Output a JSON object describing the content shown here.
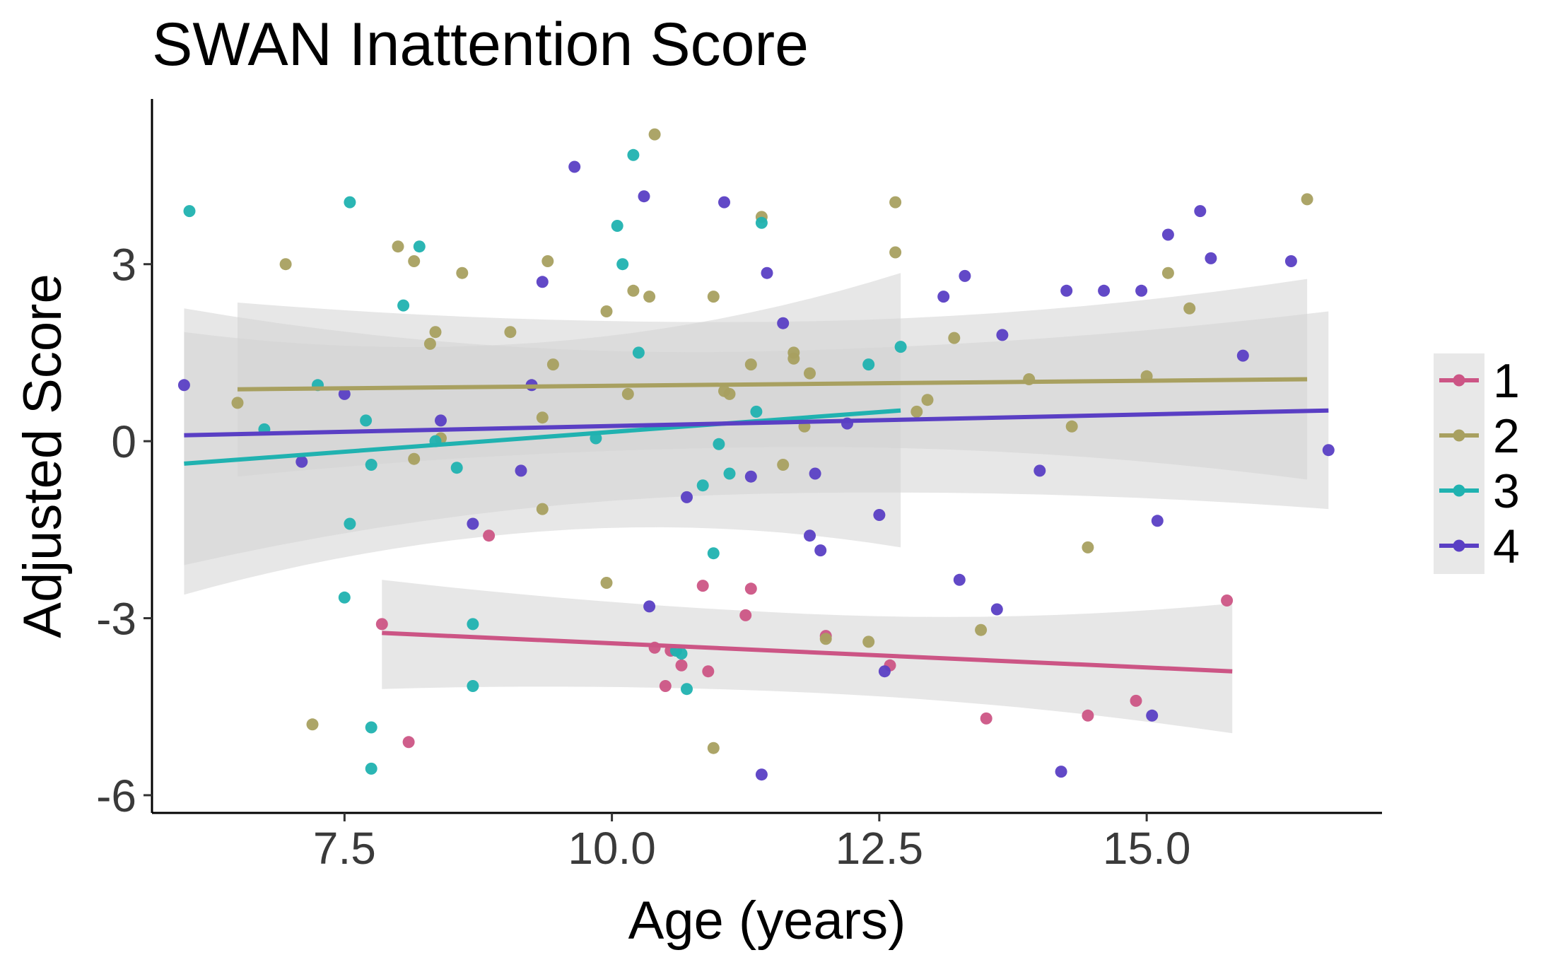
{
  "chart_data": {
    "type": "scatter",
    "title": "SWAN Inattention Score",
    "xlabel": "Age (years)",
    "ylabel": "Adjusted Score",
    "xlim": [
      5.7,
      17.2
    ],
    "ylim": [
      -6.3,
      5.8
    ],
    "x_ticks": [
      7.5,
      10.0,
      12.5,
      15.0
    ],
    "x_tick_labels": [
      "7.5",
      "10.0",
      "12.5",
      "15.0"
    ],
    "y_ticks": [
      3,
      0,
      -3,
      -6
    ],
    "y_tick_labels": [
      "3",
      "0",
      "-3",
      "-6"
    ],
    "grid": false,
    "legend_position": "right",
    "confidence_band_color": "#d3d3d3",
    "series": [
      {
        "name": "1",
        "color": "#cc5585",
        "fit": {
          "x": [
            7.85,
            15.8
          ],
          "y": [
            -3.25,
            -3.9
          ]
        },
        "ci": {
          "upper": [
            -2.35,
            -2.75
          ],
          "lower": [
            -4.2,
            -4.95
          ]
        },
        "points": [
          [
            7.85,
            -3.1
          ],
          [
            8.1,
            -5.1
          ],
          [
            8.85,
            -1.6
          ],
          [
            10.4,
            -3.5
          ],
          [
            10.5,
            -4.15
          ],
          [
            10.55,
            -3.55
          ],
          [
            10.65,
            -3.8
          ],
          [
            10.85,
            -2.45
          ],
          [
            10.9,
            -3.9
          ],
          [
            11.25,
            -2.95
          ],
          [
            11.3,
            -2.5
          ],
          [
            12.0,
            -3.3
          ],
          [
            12.6,
            -3.8
          ],
          [
            13.5,
            -4.7
          ],
          [
            14.45,
            -4.65
          ],
          [
            14.9,
            -4.4
          ],
          [
            15.75,
            -2.7
          ]
        ]
      },
      {
        "name": "2",
        "color": "#a8a060",
        "fit": {
          "x": [
            6.5,
            16.5
          ],
          "y": [
            0.88,
            1.05
          ]
        },
        "ci": {
          "upper": [
            2.35,
            2.75
          ],
          "lower": [
            -0.6,
            -0.65
          ]
        },
        "points": [
          [
            6.5,
            0.65
          ],
          [
            6.95,
            3.0
          ],
          [
            7.2,
            -4.8
          ],
          [
            8.0,
            3.3
          ],
          [
            8.15,
            3.05
          ],
          [
            8.15,
            -0.3
          ],
          [
            8.3,
            1.65
          ],
          [
            8.35,
            1.85
          ],
          [
            8.4,
            0.05
          ],
          [
            8.6,
            2.85
          ],
          [
            9.05,
            1.85
          ],
          [
            9.35,
            -1.15
          ],
          [
            9.35,
            0.4
          ],
          [
            9.4,
            3.05
          ],
          [
            9.45,
            1.3
          ],
          [
            9.95,
            2.2
          ],
          [
            9.95,
            -2.4
          ],
          [
            10.15,
            0.8
          ],
          [
            10.2,
            2.55
          ],
          [
            10.35,
            2.45
          ],
          [
            10.4,
            5.2
          ],
          [
            10.95,
            2.45
          ],
          [
            10.95,
            -5.2
          ],
          [
            11.05,
            0.85
          ],
          [
            11.1,
            0.8
          ],
          [
            11.3,
            1.3
          ],
          [
            11.4,
            3.8
          ],
          [
            11.6,
            -0.4
          ],
          [
            11.7,
            1.5
          ],
          [
            11.7,
            1.4
          ],
          [
            11.8,
            0.25
          ],
          [
            11.85,
            1.15
          ],
          [
            12.0,
            -3.35
          ],
          [
            12.4,
            -3.4
          ],
          [
            12.65,
            3.2
          ],
          [
            12.65,
            4.05
          ],
          [
            12.85,
            0.5
          ],
          [
            12.95,
            0.7
          ],
          [
            13.2,
            1.75
          ],
          [
            13.45,
            -3.2
          ],
          [
            13.9,
            1.05
          ],
          [
            14.3,
            0.25
          ],
          [
            14.45,
            -1.8
          ],
          [
            15.0,
            1.1
          ],
          [
            15.2,
            2.85
          ],
          [
            15.4,
            2.25
          ],
          [
            16.5,
            4.1
          ]
        ]
      },
      {
        "name": "3",
        "color": "#20b2b0",
        "fit": {
          "x": [
            6.0,
            12.7
          ],
          "y": [
            -0.38,
            0.52
          ]
        },
        "ci": {
          "upper": [
            1.85,
            2.85
          ],
          "lower": [
            -2.6,
            -1.8
          ]
        },
        "points": [
          [
            6.05,
            3.9
          ],
          [
            6.75,
            0.2
          ],
          [
            7.25,
            0.95
          ],
          [
            7.5,
            -2.65
          ],
          [
            7.55,
            4.05
          ],
          [
            7.55,
            -1.4
          ],
          [
            7.7,
            0.35
          ],
          [
            7.75,
            -0.4
          ],
          [
            7.75,
            -4.85
          ],
          [
            7.75,
            -5.55
          ],
          [
            8.05,
            2.3
          ],
          [
            8.2,
            3.3
          ],
          [
            8.35,
            0.0
          ],
          [
            8.55,
            -0.45
          ],
          [
            8.7,
            -3.1
          ],
          [
            8.7,
            -4.15
          ],
          [
            9.85,
            0.05
          ],
          [
            10.05,
            3.65
          ],
          [
            10.1,
            3.0
          ],
          [
            10.2,
            4.85
          ],
          [
            10.25,
            1.5
          ],
          [
            10.6,
            -3.55
          ],
          [
            10.65,
            -3.6
          ],
          [
            10.7,
            -4.2
          ],
          [
            10.85,
            -0.75
          ],
          [
            10.95,
            -1.9
          ],
          [
            11.0,
            -0.05
          ],
          [
            11.1,
            -0.55
          ],
          [
            11.35,
            0.5
          ],
          [
            11.4,
            3.7
          ],
          [
            12.4,
            1.3
          ],
          [
            12.7,
            1.6
          ]
        ]
      },
      {
        "name": "4",
        "color": "#5a3fc4",
        "fit": {
          "x": [
            6.0,
            16.7
          ],
          "y": [
            0.1,
            0.52
          ]
        },
        "ci": {
          "upper": [
            2.25,
            2.2
          ],
          "lower": [
            -2.1,
            -1.15
          ]
        },
        "points": [
          [
            6.0,
            0.95
          ],
          [
            7.1,
            -0.35
          ],
          [
            7.5,
            0.8
          ],
          [
            8.4,
            0.35
          ],
          [
            8.7,
            -1.4
          ],
          [
            9.15,
            -0.5
          ],
          [
            9.25,
            0.95
          ],
          [
            9.35,
            2.7
          ],
          [
            9.65,
            4.65
          ],
          [
            10.3,
            4.15
          ],
          [
            10.35,
            -2.8
          ],
          [
            10.7,
            -0.95
          ],
          [
            11.05,
            4.05
          ],
          [
            11.3,
            -0.6
          ],
          [
            11.45,
            2.85
          ],
          [
            11.4,
            -5.65
          ],
          [
            11.6,
            2.0
          ],
          [
            11.85,
            -1.6
          ],
          [
            11.9,
            -0.55
          ],
          [
            11.95,
            -1.85
          ],
          [
            12.2,
            0.3
          ],
          [
            12.5,
            -1.25
          ],
          [
            12.55,
            -3.9
          ],
          [
            13.1,
            2.45
          ],
          [
            13.25,
            -2.35
          ],
          [
            13.3,
            2.8
          ],
          [
            13.65,
            1.8
          ],
          [
            13.6,
            -2.85
          ],
          [
            14.0,
            -0.5
          ],
          [
            14.2,
            -5.6
          ],
          [
            14.25,
            2.55
          ],
          [
            14.6,
            2.55
          ],
          [
            14.95,
            2.55
          ],
          [
            15.05,
            -4.65
          ],
          [
            15.1,
            -1.35
          ],
          [
            15.2,
            3.5
          ],
          [
            15.5,
            3.9
          ],
          [
            15.6,
            3.1
          ],
          [
            15.9,
            1.45
          ],
          [
            16.35,
            3.05
          ],
          [
            16.7,
            -0.15
          ]
        ]
      }
    ]
  }
}
